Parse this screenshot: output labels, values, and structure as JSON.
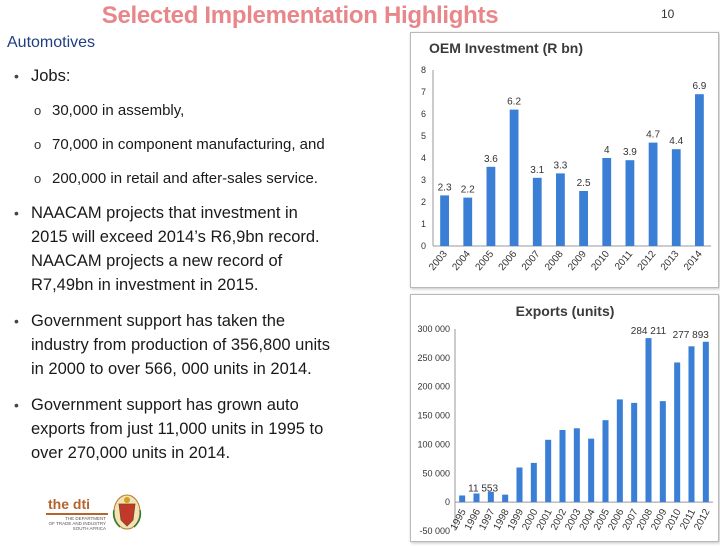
{
  "slide": {
    "title": "Selected Implementation Highlights",
    "page_number": "10",
    "section": "Automotives"
  },
  "bullets": {
    "jobs_label": "Jobs:",
    "jobs": [
      "30,000 in assembly,",
      "70,000 in component manufacturing, and",
      "200,000 in retail and after-sales service."
    ],
    "naacam_lines": [
      "NAACAM projects that investment in",
      "2015 will exceed 2014’s R6,9bn record.",
      "NAACAM projects a new record of",
      "R7,49bn in investment in 2015."
    ],
    "production_lines": [
      "Government support has taken the",
      "industry from production of 356,800 units",
      "in 2000 to over 566, 000 units in 2014."
    ],
    "exports_lines": [
      "Government support has grown auto",
      "exports from just 11,000 units in 1995 to",
      "over 270,000 units in 2014."
    ]
  },
  "logo": {
    "name": "the dti",
    "line1": "THE DEPARTMENT",
    "line2": "OF TRADE AND INDUSTRY",
    "line3": "SOUTH AFRICA"
  },
  "colors": {
    "bar": "#3a7fd5",
    "title": "#e8868a",
    "section": "#1f3e80"
  },
  "chart_data": [
    {
      "type": "bar",
      "title": "OEM Investment (R bn)",
      "categories": [
        "2003",
        "2004",
        "2005",
        "2006",
        "2007",
        "2008",
        "2009",
        "2010",
        "2011",
        "2012",
        "2013",
        "2014"
      ],
      "values": [
        2.3,
        2.2,
        3.6,
        6.2,
        3.1,
        3.3,
        2.5,
        4,
        3.9,
        4.7,
        4.4,
        6.9
      ],
      "value_labels": [
        "2.3",
        "2.2",
        "3.6",
        "6.2",
        "3.1",
        "3.3",
        "2.5",
        "4",
        "3.9",
        "4.7",
        "4.4",
        "6.9"
      ],
      "ylim": [
        0,
        8
      ],
      "yticks": [
        "0",
        "1",
        "2",
        "3",
        "4",
        "5",
        "6",
        "7",
        "8"
      ],
      "xlabel": "",
      "ylabel": "",
      "grid": false,
      "legend": "none"
    },
    {
      "type": "bar",
      "title": "Exports (units)",
      "categories": [
        "1995",
        "1996",
        "1997",
        "1998",
        "1999",
        "2000",
        "2001",
        "2002",
        "2003",
        "2004",
        "2005",
        "2006",
        "2007",
        "2008",
        "2009",
        "2010",
        "2011",
        "2012"
      ],
      "values": [
        11553,
        15000,
        18000,
        13000,
        60000,
        68000,
        108000,
        125000,
        128000,
        110000,
        142000,
        178000,
        172000,
        284211,
        175000,
        242000,
        270000,
        277893
      ],
      "annotations": [
        {
          "category": "1995",
          "text": "11 553"
        },
        {
          "category": "2008",
          "text": "284 211"
        },
        {
          "category": "2012",
          "text": "277 893"
        }
      ],
      "ylim": [
        -50000,
        300000
      ],
      "yticks": [
        "-50 000",
        "0",
        "50 000",
        "100 000",
        "150 000",
        "200 000",
        "250 000",
        "300 000"
      ],
      "xlabel": "",
      "ylabel": "",
      "grid": false,
      "legend": "none"
    }
  ]
}
